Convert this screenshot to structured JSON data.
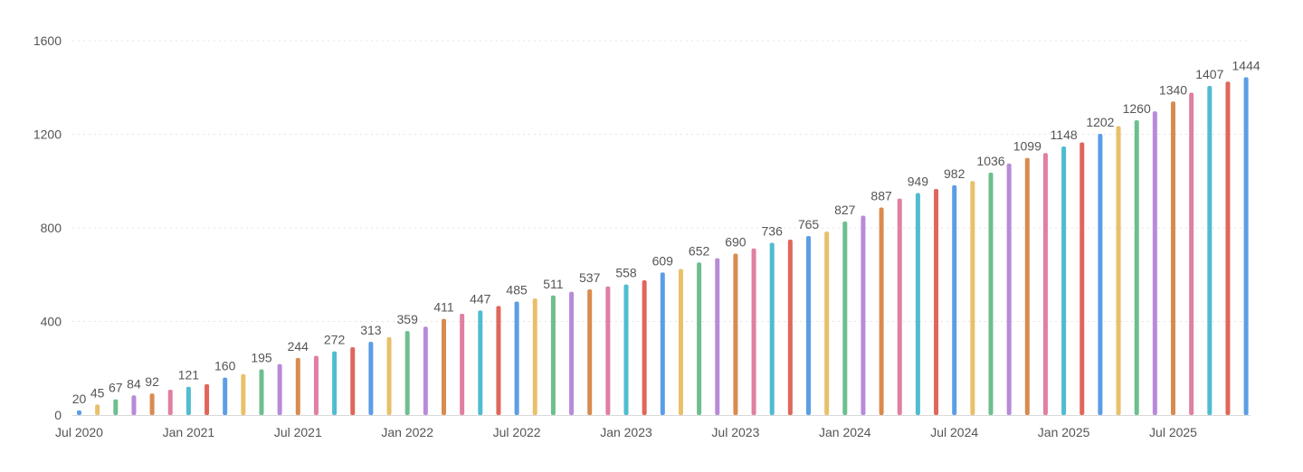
{
  "chart_data": {
    "type": "bar",
    "ylim": [
      0,
      1600
    ],
    "y_ticks": [
      "0",
      "400",
      "800",
      "1200",
      "1600"
    ],
    "y_tick_values": [
      0,
      400,
      800,
      1200,
      1600
    ],
    "grid": true,
    "legend": "none",
    "x_tick_labels": [
      {
        "label": "Jul 2020",
        "index": 0
      },
      {
        "label": "Jan 2021",
        "index": 6
      },
      {
        "label": "Jul 2021",
        "index": 12
      },
      {
        "label": "Jan 2022",
        "index": 18
      },
      {
        "label": "Jul 2022",
        "index": 24
      },
      {
        "label": "Jan 2023",
        "index": 30
      },
      {
        "label": "Jul 2023",
        "index": 36
      },
      {
        "label": "Jan 2024",
        "index": 42
      },
      {
        "label": "Jul 2024",
        "index": 48
      },
      {
        "label": "Jan 2025",
        "index": 54
      },
      {
        "label": "Jul 2025",
        "index": 60
      }
    ],
    "categories": [
      "2020-07",
      "2020-08",
      "2020-09",
      "2020-10",
      "2020-11",
      "2020-12",
      "2021-01",
      "2021-02",
      "2021-03",
      "2021-04",
      "2021-05",
      "2021-06",
      "2021-07",
      "2021-08",
      "2021-09",
      "2021-10",
      "2021-11",
      "2021-12",
      "2022-01",
      "2022-02",
      "2022-03",
      "2022-04",
      "2022-05",
      "2022-06",
      "2022-07",
      "2022-08",
      "2022-09",
      "2022-10",
      "2022-11",
      "2022-12",
      "2023-01",
      "2023-02",
      "2023-03",
      "2023-04",
      "2023-05",
      "2023-06",
      "2023-07",
      "2023-08",
      "2023-09",
      "2023-10",
      "2023-11",
      "2023-12",
      "2024-01",
      "2024-02",
      "2024-03",
      "2024-04",
      "2024-05",
      "2024-06",
      "2024-07",
      "2024-08",
      "2024-09",
      "2024-10",
      "2024-11",
      "2024-12",
      "2025-01",
      "2025-02",
      "2025-03",
      "2025-04",
      "2025-05",
      "2025-06",
      "2025-07",
      "2025-08",
      "2025-09",
      "2025-10",
      "2025-11"
    ],
    "values": [
      20,
      45,
      67,
      84,
      92,
      108,
      121,
      132,
      160,
      175,
      195,
      218,
      244,
      253,
      272,
      290,
      313,
      333,
      359,
      378,
      411,
      433,
      447,
      466,
      485,
      498,
      511,
      527,
      537,
      550,
      558,
      576,
      609,
      624,
      652,
      670,
      690,
      712,
      736,
      750,
      765,
      784,
      827,
      852,
      887,
      925,
      949,
      966,
      982,
      1000,
      1036,
      1075,
      1099,
      1120,
      1148,
      1165,
      1202,
      1235,
      1260,
      1298,
      1340,
      1378,
      1407,
      1425,
      1444
    ],
    "data_labels": [
      {
        "index": 0,
        "text": "20"
      },
      {
        "index": 1,
        "text": "45"
      },
      {
        "index": 2,
        "text": "67"
      },
      {
        "index": 3,
        "text": "84"
      },
      {
        "index": 4,
        "text": "92"
      },
      {
        "index": 6,
        "text": "121"
      },
      {
        "index": 8,
        "text": "160"
      },
      {
        "index": 10,
        "text": "195"
      },
      {
        "index": 12,
        "text": "244"
      },
      {
        "index": 14,
        "text": "272"
      },
      {
        "index": 16,
        "text": "313"
      },
      {
        "index": 18,
        "text": "359"
      },
      {
        "index": 20,
        "text": "411"
      },
      {
        "index": 22,
        "text": "447"
      },
      {
        "index": 24,
        "text": "485"
      },
      {
        "index": 26,
        "text": "511"
      },
      {
        "index": 28,
        "text": "537"
      },
      {
        "index": 30,
        "text": "558"
      },
      {
        "index": 32,
        "text": "609"
      },
      {
        "index": 34,
        "text": "652"
      },
      {
        "index": 36,
        "text": "690"
      },
      {
        "index": 38,
        "text": "736"
      },
      {
        "index": 40,
        "text": "765"
      },
      {
        "index": 42,
        "text": "827"
      },
      {
        "index": 44,
        "text": "887"
      },
      {
        "index": 46,
        "text": "949"
      },
      {
        "index": 48,
        "text": "982"
      },
      {
        "index": 50,
        "text": "1036"
      },
      {
        "index": 52,
        "text": "1099"
      },
      {
        "index": 54,
        "text": "1148"
      },
      {
        "index": 56,
        "text": "1202"
      },
      {
        "index": 58,
        "text": "1260"
      },
      {
        "index": 60,
        "text": "1340"
      },
      {
        "index": 62,
        "text": "1407"
      },
      {
        "index": 64,
        "text": "1444"
      }
    ],
    "bar_colors": [
      "#5b9ee6",
      "#e8c06a",
      "#6dbf8e",
      "#b88ad9",
      "#d98b4f",
      "#e07fa3",
      "#4fbcd0",
      "#e0665b"
    ]
  }
}
